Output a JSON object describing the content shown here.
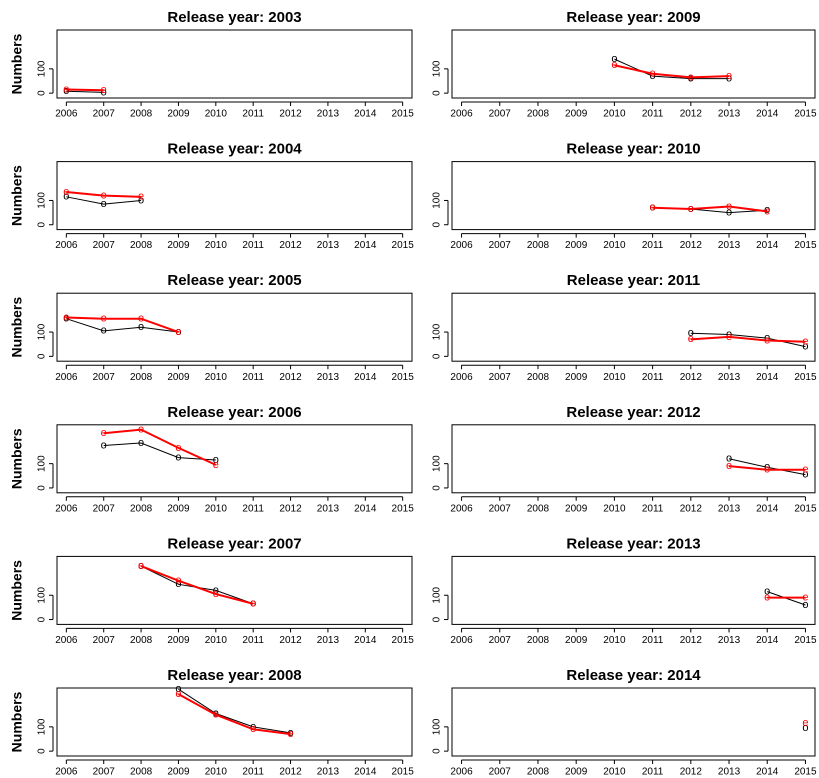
{
  "chart_data": [
    {
      "type": "line",
      "title": "Release year: 2003",
      "ylabel": "Numbers",
      "x": [
        2006,
        2007
      ],
      "series": [
        {
          "color": "#000000",
          "marker": "o",
          "values": [
            8,
            3
          ]
        },
        {
          "color": "#ff0000",
          "marker": "e",
          "values": [
            15,
            12
          ]
        }
      ],
      "xlim": [
        2005.75,
        2015.25
      ],
      "ylim": [
        -20,
        260
      ],
      "xticks": [
        2006,
        2007,
        2008,
        2009,
        2010,
        2011,
        2012,
        2013,
        2014,
        2015
      ],
      "yticks": [
        0,
        100
      ]
    },
    {
      "type": "line",
      "title": "Release year: 2009",
      "x": [
        2010,
        2011,
        2012,
        2013
      ],
      "series": [
        {
          "color": "#000000",
          "marker": "o",
          "values": [
            140,
            70,
            60,
            60
          ]
        },
        {
          "color": "#ff0000",
          "marker": "e",
          "values": [
            115,
            80,
            65,
            70
          ]
        }
      ],
      "xlim": [
        2005.75,
        2015.25
      ],
      "ylim": [
        -20,
        260
      ],
      "xticks": [
        2006,
        2007,
        2008,
        2009,
        2010,
        2011,
        2012,
        2013,
        2014,
        2015
      ],
      "yticks": [
        0,
        100
      ]
    },
    {
      "type": "line",
      "title": "Release year: 2004",
      "ylabel": "Numbers",
      "x": [
        2006,
        2007,
        2008
      ],
      "series": [
        {
          "color": "#000000",
          "marker": "o",
          "values": [
            115,
            85,
            100
          ]
        },
        {
          "color": "#ff0000",
          "marker": "e",
          "values": [
            135,
            120,
            115
          ]
        }
      ],
      "xlim": [
        2005.75,
        2015.25
      ],
      "ylim": [
        -20,
        260
      ],
      "xticks": [
        2006,
        2007,
        2008,
        2009,
        2010,
        2011,
        2012,
        2013,
        2014,
        2015
      ],
      "yticks": [
        0,
        100
      ]
    },
    {
      "type": "line",
      "title": "Release year: 2010",
      "x": [
        2011,
        2012,
        2013,
        2014
      ],
      "series": [
        {
          "color": "#000000",
          "marker": "o",
          "values": [
            70,
            65,
            50,
            60
          ]
        },
        {
          "color": "#ff0000",
          "marker": "e",
          "values": [
            70,
            65,
            75,
            55
          ]
        }
      ],
      "xlim": [
        2005.75,
        2015.25
      ],
      "ylim": [
        -20,
        260
      ],
      "xticks": [
        2006,
        2007,
        2008,
        2009,
        2010,
        2011,
        2012,
        2013,
        2014,
        2015
      ],
      "yticks": [
        0,
        100
      ]
    },
    {
      "type": "line",
      "title": "Release year: 2005",
      "ylabel": "Numbers",
      "x": [
        2006,
        2007,
        2008,
        2009
      ],
      "series": [
        {
          "color": "#000000",
          "marker": "o",
          "values": [
            155,
            105,
            120,
            100
          ]
        },
        {
          "color": "#ff0000",
          "marker": "e",
          "values": [
            160,
            155,
            155,
            100
          ]
        }
      ],
      "xlim": [
        2005.75,
        2015.25
      ],
      "ylim": [
        -20,
        260
      ],
      "xticks": [
        2006,
        2007,
        2008,
        2009,
        2010,
        2011,
        2012,
        2013,
        2014,
        2015
      ],
      "yticks": [
        0,
        100
      ]
    },
    {
      "type": "line",
      "title": "Release year: 2011",
      "x": [
        2012,
        2013,
        2014,
        2015
      ],
      "series": [
        {
          "color": "#000000",
          "marker": "o",
          "values": [
            95,
            90,
            75,
            40
          ]
        },
        {
          "color": "#ff0000",
          "marker": "e",
          "values": [
            70,
            80,
            65,
            60
          ]
        }
      ],
      "xlim": [
        2005.75,
        2015.25
      ],
      "ylim": [
        -20,
        260
      ],
      "xticks": [
        2006,
        2007,
        2008,
        2009,
        2010,
        2011,
        2012,
        2013,
        2014,
        2015
      ],
      "yticks": [
        0,
        100
      ]
    },
    {
      "type": "line",
      "title": "Release year: 2006",
      "ylabel": "Numbers",
      "x": [
        2007,
        2008,
        2009,
        2010
      ],
      "series": [
        {
          "color": "#000000",
          "marker": "o",
          "values": [
            175,
            185,
            125,
            115
          ]
        },
        {
          "color": "#ff0000",
          "marker": "e",
          "values": [
            225,
            240,
            165,
            95
          ]
        }
      ],
      "xlim": [
        2005.75,
        2015.25
      ],
      "ylim": [
        -20,
        260
      ],
      "xticks": [
        2006,
        2007,
        2008,
        2009,
        2010,
        2011,
        2012,
        2013,
        2014,
        2015
      ],
      "yticks": [
        0,
        100
      ]
    },
    {
      "type": "line",
      "title": "Release year: 2012",
      "x": [
        2013,
        2014,
        2015
      ],
      "series": [
        {
          "color": "#000000",
          "marker": "o",
          "values": [
            120,
            85,
            55
          ]
        },
        {
          "color": "#ff0000",
          "marker": "e",
          "values": [
            90,
            75,
            75
          ]
        }
      ],
      "xlim": [
        2005.75,
        2015.25
      ],
      "ylim": [
        -20,
        260
      ],
      "xticks": [
        2006,
        2007,
        2008,
        2009,
        2010,
        2011,
        2012,
        2013,
        2014,
        2015
      ],
      "yticks": [
        0,
        100
      ]
    },
    {
      "type": "line",
      "title": "Release year: 2007",
      "ylabel": "Numbers",
      "x": [
        2008,
        2009,
        2010,
        2011
      ],
      "series": [
        {
          "color": "#000000",
          "marker": "o",
          "values": [
            220,
            145,
            120,
            65
          ]
        },
        {
          "color": "#ff0000",
          "marker": "e",
          "values": [
            220,
            160,
            105,
            65
          ]
        }
      ],
      "xlim": [
        2005.75,
        2015.25
      ],
      "ylim": [
        -20,
        260
      ],
      "xticks": [
        2006,
        2007,
        2008,
        2009,
        2010,
        2011,
        2012,
        2013,
        2014,
        2015
      ],
      "yticks": [
        0,
        100
      ]
    },
    {
      "type": "line",
      "title": "Release year: 2013",
      "x": [
        2014,
        2015
      ],
      "series": [
        {
          "color": "#000000",
          "marker": "o",
          "values": [
            115,
            60
          ]
        },
        {
          "color": "#ff0000",
          "marker": "e",
          "values": [
            90,
            90
          ]
        }
      ],
      "xlim": [
        2005.75,
        2015.25
      ],
      "ylim": [
        -20,
        260
      ],
      "xticks": [
        2006,
        2007,
        2008,
        2009,
        2010,
        2011,
        2012,
        2013,
        2014,
        2015
      ],
      "yticks": [
        0,
        100
      ]
    },
    {
      "type": "line",
      "title": "Release year: 2008",
      "ylabel": "Numbers",
      "x": [
        2009,
        2010,
        2011,
        2012
      ],
      "series": [
        {
          "color": "#000000",
          "marker": "o",
          "values": [
            255,
            155,
            100,
            75
          ]
        },
        {
          "color": "#ff0000",
          "marker": "e",
          "values": [
            235,
            150,
            90,
            70
          ]
        }
      ],
      "xlim": [
        2005.75,
        2015.25
      ],
      "ylim": [
        -20,
        260
      ],
      "xticks": [
        2006,
        2007,
        2008,
        2009,
        2010,
        2011,
        2012,
        2013,
        2014,
        2015
      ],
      "yticks": [
        0,
        100
      ]
    },
    {
      "type": "line",
      "title": "Release year: 2014",
      "x": [
        2015
      ],
      "series": [
        {
          "color": "#000000",
          "marker": "o",
          "values": [
            95
          ]
        },
        {
          "color": "#ff0000",
          "marker": "e",
          "values": [
            115
          ]
        }
      ],
      "xlim": [
        2005.75,
        2015.25
      ],
      "ylim": [
        -20,
        260
      ],
      "xticks": [
        2006,
        2007,
        2008,
        2009,
        2010,
        2011,
        2012,
        2013,
        2014,
        2015
      ],
      "yticks": [
        0,
        100
      ]
    }
  ]
}
